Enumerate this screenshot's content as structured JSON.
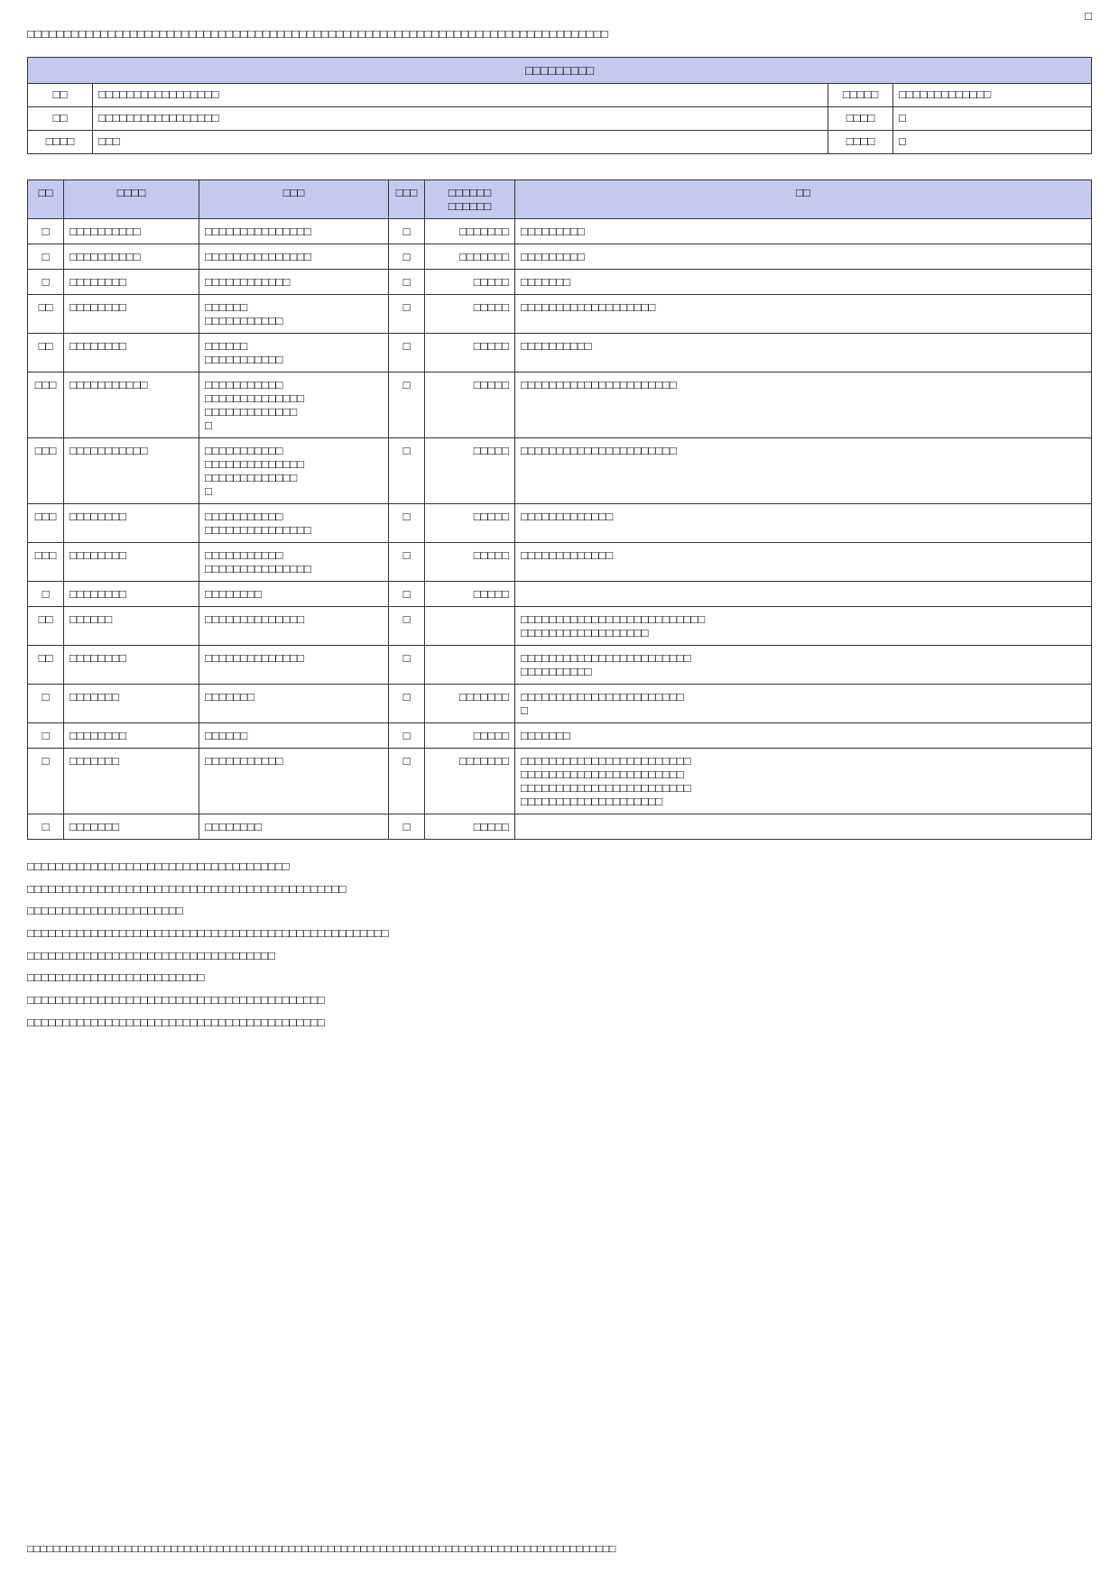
{
  "page_number": "□",
  "top_paragraph": "□□□□□□□□□□□□□□□□□□□□□□□□□□□□□□□□□□□□□□□□□□□□□□□□□□□□□□□□□□□□□□□□□□□□□□□□□□□□□□□",
  "header_table": {
    "title": "□□□□□□□□□",
    "rows": [
      {
        "left_label": "□□",
        "left_value": "□□□□□□□□□□□□□□□□□",
        "right_label": "□□□□□",
        "right_value": "□□□□□□□□□□□□□"
      },
      {
        "left_label": "□□",
        "left_value": "□□□□□□□□□□□□□□□□□",
        "right_label": "□□□□",
        "right_value": "□"
      },
      {
        "left_label": "□□□□",
        "left_value": "□□□",
        "right_label": "□□□□",
        "right_value": "□"
      }
    ]
  },
  "main_table": {
    "columns": [
      "□□",
      "□□□□",
      "□□□",
      "□□□",
      "□□□□□□ □□□□□□",
      "□□"
    ],
    "rows": [
      {
        "no": "□",
        "date": "□□□□□□□□□□",
        "item": "□□□□□□□□□□□□□□□",
        "qty": "□",
        "amt": "□□□□□□□",
        "note": "□□□□□□□□□"
      },
      {
        "no": "□",
        "date": "□□□□□□□□□□",
        "item": "□□□□□□□□□□□□□□□",
        "qty": "□",
        "amt": "□□□□□□□",
        "note": "□□□□□□□□□"
      },
      {
        "no": "□",
        "date": "□□□□□□□□",
        "item": "□□□□□□□□□□□□",
        "qty": "□",
        "amt": "□□□□□",
        "note": "□□□□□□□"
      },
      {
        "no": "□□",
        "date": "□□□□□□□□",
        "item": "□□□□□□\n□□□□□□□□□□□",
        "qty": "□",
        "amt": "□□□□□",
        "note": "□□□□□□□□□□□□□□□□□□□"
      },
      {
        "no": "□□",
        "date": "□□□□□□□□",
        "item": "□□□□□□\n□□□□□□□□□□□",
        "qty": "□",
        "amt": "□□□□□",
        "note": "□□□□□□□□□□"
      },
      {
        "no": "□□□",
        "date": "□□□□□□□□□□□",
        "item": "□□□□□□□□□□□\n□□□□□□□□□□□□□□\n□□□□□□□□□□□□□\n□",
        "qty": "□",
        "amt": "□□□□□",
        "note": "□□□□□□□□□□□□□□□□□□□□□□"
      },
      {
        "no": "□□□",
        "date": "□□□□□□□□□□□",
        "item": "□□□□□□□□□□□\n□□□□□□□□□□□□□□\n□□□□□□□□□□□□□\n□",
        "qty": "□",
        "amt": "□□□□□",
        "note": "□□□□□□□□□□□□□□□□□□□□□□"
      },
      {
        "no": "□□□",
        "date": "□□□□□□□□",
        "item": "□□□□□□□□□□□\n□□□□□□□□□□□□□□□",
        "qty": "□",
        "amt": "□□□□□",
        "note": "□□□□□□□□□□□□□"
      },
      {
        "no": "□□□",
        "date": "□□□□□□□□",
        "item": "□□□□□□□□□□□\n□□□□□□□□□□□□□□□",
        "qty": "□",
        "amt": "□□□□□",
        "note": "□□□□□□□□□□□□□"
      },
      {
        "no": "□",
        "date": "□□□□□□□□",
        "item": "□□□□□□□□",
        "qty": "□",
        "amt": "□□□□□",
        "note": ""
      },
      {
        "no": "□□",
        "date": "□□□□□□",
        "item": "□□□□□□□□□□□□□□",
        "qty": "□",
        "amt": "",
        "note": "□□□□□□□□□□□□□□□□□□□□□□□□□□\n□□□□□□□□□□□□□□□□□□"
      },
      {
        "no": "□□",
        "date": "□□□□□□□□",
        "item": "□□□□□□□□□□□□□□",
        "qty": "□",
        "amt": "",
        "note": "□□□□□□□□□□□□□□□□□□□□□□□□\n□□□□□□□□□□"
      },
      {
        "no": "□",
        "date": "□□□□□□□",
        "item": "□□□□□□□",
        "qty": "□",
        "amt": "□□□□□□□",
        "note": "□□□□□□□□□□□□□□□□□□□□□□□\n□"
      },
      {
        "no": "□",
        "date": "□□□□□□□□",
        "item": "□□□□□□",
        "qty": "□",
        "amt": "□□□□□",
        "note": "□□□□□□□"
      },
      {
        "no": "□",
        "date": "□□□□□□□",
        "item": "□□□□□□□□□□□",
        "qty": "□",
        "amt": "□□□□□□□",
        "note": "□□□□□□□□□□□□□□□□□□□□□□□□\n□□□□□□□□□□□□□□□□□□□□□□□\n□□□□□□□□□□□□□□□□□□□□□□□□\n□□□□□□□□□□□□□□□□□□□□"
      },
      {
        "no": "□",
        "date": "□□□□□□□",
        "item": "□□□□□□□□",
        "qty": "□",
        "amt": "□□□□□",
        "note": ""
      }
    ]
  },
  "notes_lines": [
    "□□□□□□□□□□□□□□□□□□□□□□□□□□□□□□□□□□□□□",
    "□□□□□□□□□□□□□□□□□□□□□□□□□□□□□□□□□□□□□□□□□□□□□",
    "□□□□□□□□□□□□□□□□□□□□□□",
    "□□□□□□□□□□□□□□□□□□□□□□□□□□□□□□□□□□□□□□□□□□□□□□□□□□□",
    "□□□□□□□□□□□□□□□□□□□□□□□□□□□□□□□□□□□",
    "□□□□□□□□□□□□□□□□□□□□□□□□□",
    "□□□□□□□□□□□□□□□□□□□□□□□□□□□□□□□□□□□□□□□□□□",
    "□□□□□□□□□□□□□□□□□□□□□□□□□□□□□□□□□□□□□□□□□□"
  ],
  "footer": "□□□□□□□□□□□□□□□□□□□□□□□□□□□□□□□□□□□□□□□□□□□□□□□□□□□□□□□□□□□□□□□□□□□□□□□□□□□□□□□□□□□□□□□□□□",
  "colors": {
    "header_bg": "#c5c9ef",
    "border": "#333333",
    "text": "#000000",
    "page_bg": "#ffffff"
  }
}
